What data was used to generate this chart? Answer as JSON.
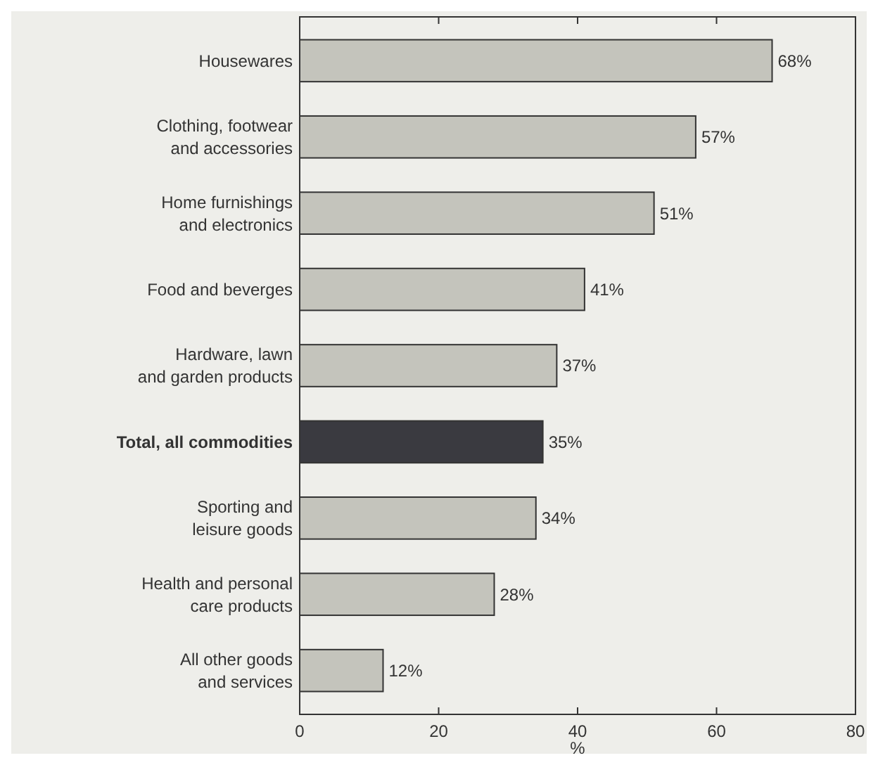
{
  "chart_data": {
    "type": "bar",
    "orientation": "horizontal",
    "xlabel": "%",
    "categories": [
      "Housewares",
      "Clothing, footwear\nand accessories",
      "Home furnishings\nand electronics",
      "Food and beverges",
      "Hardware, lawn\nand garden products",
      "Total, all commodities",
      "Sporting and\nleisure goods",
      "Health and personal\ncare products",
      "All other goods\nand services"
    ],
    "values": [
      68,
      57,
      51,
      41,
      37,
      35,
      34,
      28,
      12
    ],
    "value_labels": [
      "68%",
      "57%",
      "51%",
      "41%",
      "37%",
      "35%",
      "34%",
      "28%",
      "12%"
    ],
    "colors": [
      "#c4c4bc",
      "#c4c4bc",
      "#c4c4bc",
      "#c4c4bc",
      "#c4c4bc",
      "#3a3a40",
      "#c4c4bc",
      "#c4c4bc",
      "#c4c4bc"
    ],
    "xlim": [
      0,
      80
    ],
    "xticks": [
      0,
      20,
      40,
      60,
      80
    ]
  }
}
